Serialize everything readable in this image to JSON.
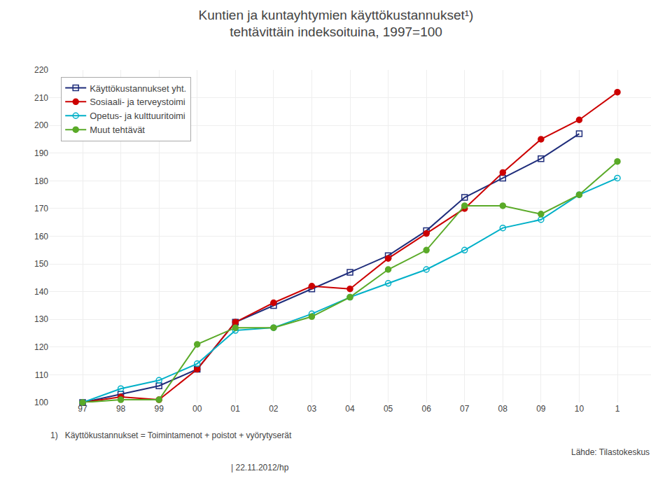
{
  "chart_data": {
    "type": "line",
    "title": "Kuntien ja kuntayhtymien käyttökustannukset¹)",
    "subtitle": "tehtävittäin indeksoituina, 1997=100",
    "categories": [
      "97",
      "98",
      "99",
      "00",
      "01",
      "02",
      "03",
      "04",
      "05",
      "06",
      "07",
      "08",
      "09",
      "10",
      "1"
    ],
    "series": [
      {
        "name": "Käyttökustannukset yht.",
        "color": "#1f2d7b",
        "marker": "square-open",
        "line_style": "solid",
        "values": [
          100,
          103,
          106,
          112,
          129,
          135,
          141,
          147,
          153,
          162,
          174,
          181,
          188,
          197,
          null
        ]
      },
      {
        "name": "Sosiaali- ja terveystoimi",
        "color": "#cc0000",
        "marker": "circle",
        "line_style": "solid",
        "values": [
          100,
          102,
          101,
          112,
          129,
          136,
          142,
          141,
          152,
          161,
          170,
          183,
          195,
          202,
          212
        ]
      },
      {
        "name": "Opetus- ja kulttuuritoimi",
        "color": "#00b0c8",
        "marker": "circle-open",
        "line_style": "solid",
        "values": [
          100,
          105,
          108,
          114,
          126,
          127,
          132,
          138,
          143,
          148,
          155,
          163,
          166,
          175,
          181
        ]
      },
      {
        "name": "Muut tehtävät",
        "color": "#5aaa28",
        "marker": "circle",
        "line_style": "solid",
        "values": [
          100,
          101,
          101,
          121,
          127,
          127,
          131,
          138,
          148,
          155,
          171,
          171,
          168,
          175,
          187
        ]
      }
    ],
    "ylim": [
      100,
      220
    ],
    "yticks": [
      100,
      110,
      120,
      130,
      140,
      150,
      160,
      170,
      180,
      190,
      200,
      210,
      220
    ],
    "grid": true,
    "legend": "upper left",
    "annotations": [
      "1)   Käyttökustannukset = Toimintamenot + poistot + vyörytyserät",
      "Lähde: Tilastokeskus",
      "| 22.11.2012/hp"
    ]
  }
}
